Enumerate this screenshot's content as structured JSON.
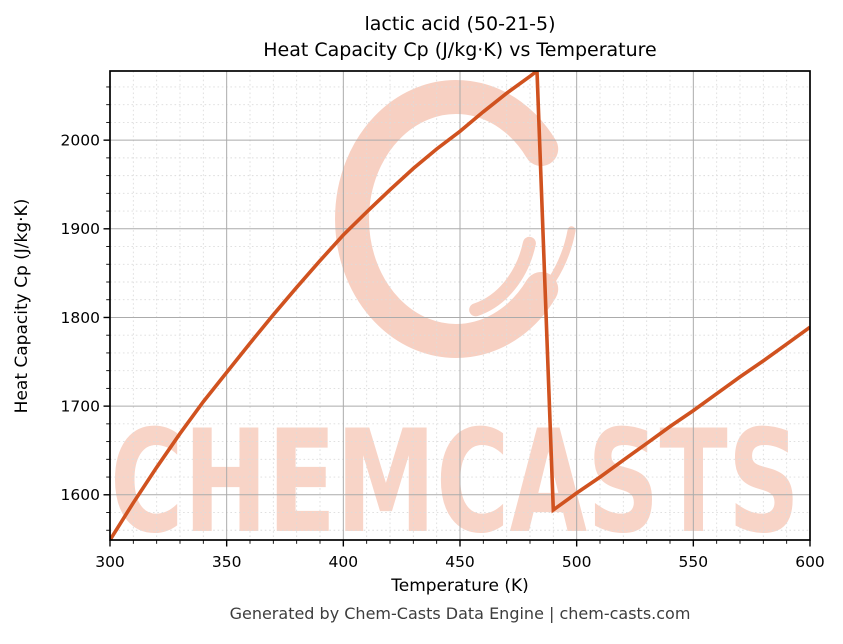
{
  "figure": {
    "title_line1": "lactic acid (50-21-5)",
    "title_line2": "Heat Capacity Cp (J/kg·K) vs Temperature",
    "footer": "Generated by Chem-Casts Data Engine | chem-casts.com"
  },
  "watermark": {
    "text": "CHEMCASTS",
    "logo": "ring-swoosh-logo",
    "color": "#f7d0c2",
    "text_color": "#f8d4c7"
  },
  "chart_data": {
    "type": "line",
    "title": "lactic acid (50-21-5) Heat Capacity Cp (J/kg·K) vs Temperature",
    "xlabel": "Temperature (K)",
    "ylabel": "Heat Capacity Cp (J/kg·K)",
    "xlim": [
      300,
      600
    ],
    "ylim": [
      1549,
      2078
    ],
    "xticks": [
      300,
      350,
      400,
      450,
      500,
      550,
      600
    ],
    "yticks": [
      1600,
      1700,
      1800,
      1900,
      2000
    ],
    "xminor_step": 10,
    "yminor_step": 20,
    "grid": true,
    "legend": "none",
    "line_color": "#d0521f",
    "major_grid_color": "#ababab",
    "minor_grid_color": "#dcdcdc",
    "series": [
      {
        "name": "Heat Capacity Cp",
        "x": [
          300,
          310,
          320,
          330,
          340,
          350,
          360,
          370,
          380,
          390,
          400,
          410,
          420,
          430,
          440,
          450,
          460,
          470,
          480,
          483,
          490,
          500,
          510,
          520,
          530,
          540,
          550,
          560,
          570,
          580,
          590,
          600
        ],
        "y": [
          1549,
          1591,
          1631,
          1669,
          1705,
          1738,
          1771,
          1803,
          1834,
          1864,
          1893,
          1919,
          1944,
          1968,
          1990,
          2010,
          2032,
          2053,
          2072,
          2078,
          1583,
          1602,
          1620,
          1639,
          1658,
          1677,
          1695,
          1714,
          1733,
          1751,
          1770,
          1789
        ]
      }
    ],
    "annotations": [
      "sharp phase-transition drop near 483-490 K"
    ]
  }
}
